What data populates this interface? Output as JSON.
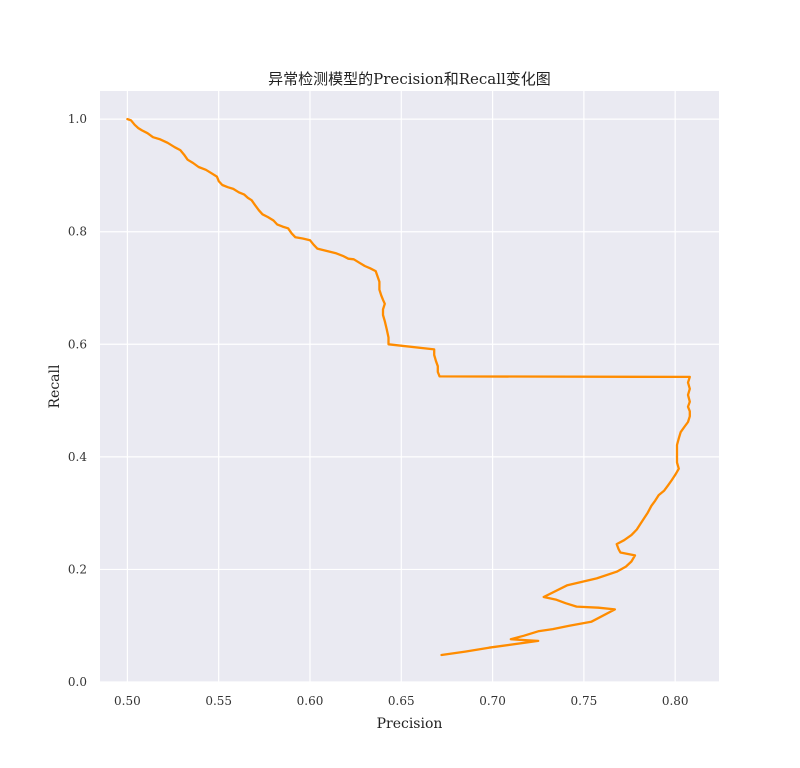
{
  "chart_data": {
    "type": "line",
    "title": "异常检测模型的Precision和Recall变化图",
    "xlabel": "Precision",
    "ylabel": "Recall",
    "xlim": [
      0.485,
      0.824
    ],
    "ylim": [
      0.0,
      1.05
    ],
    "xticks": [
      0.5,
      0.55,
      0.6,
      0.65,
      0.7,
      0.75,
      0.8
    ],
    "xtick_labels": [
      "0.50",
      "0.55",
      "0.60",
      "0.65",
      "0.70",
      "0.75",
      "0.80"
    ],
    "yticks": [
      0.0,
      0.2,
      0.4,
      0.6,
      0.8,
      1.0
    ],
    "ytick_labels": [
      "0.0",
      "0.2",
      "0.4",
      "0.6",
      "0.8",
      "1.0"
    ],
    "grid": true,
    "series": [
      {
        "color": "#ff8c00",
        "points": [
          [
            0.5,
            1.0
          ],
          [
            0.502,
            0.998
          ],
          [
            0.504,
            0.99
          ],
          [
            0.506,
            0.984
          ],
          [
            0.508,
            0.98
          ],
          [
            0.511,
            0.975
          ],
          [
            0.514,
            0.968
          ],
          [
            0.518,
            0.964
          ],
          [
            0.522,
            0.958
          ],
          [
            0.526,
            0.95
          ],
          [
            0.529,
            0.945
          ],
          [
            0.531,
            0.937
          ],
          [
            0.533,
            0.928
          ],
          [
            0.536,
            0.922
          ],
          [
            0.539,
            0.915
          ],
          [
            0.543,
            0.91
          ],
          [
            0.546,
            0.904
          ],
          [
            0.549,
            0.898
          ],
          [
            0.55,
            0.89
          ],
          [
            0.552,
            0.883
          ],
          [
            0.555,
            0.879
          ],
          [
            0.558,
            0.876
          ],
          [
            0.561,
            0.87
          ],
          [
            0.564,
            0.866
          ],
          [
            0.566,
            0.86
          ],
          [
            0.568,
            0.856
          ],
          [
            0.57,
            0.847
          ],
          [
            0.572,
            0.838
          ],
          [
            0.574,
            0.831
          ],
          [
            0.577,
            0.826
          ],
          [
            0.58,
            0.82
          ],
          [
            0.582,
            0.813
          ],
          [
            0.585,
            0.809
          ],
          [
            0.588,
            0.806
          ],
          [
            0.59,
            0.797
          ],
          [
            0.592,
            0.79
          ],
          [
            0.596,
            0.788
          ],
          [
            0.6,
            0.785
          ],
          [
            0.602,
            0.777
          ],
          [
            0.604,
            0.77
          ],
          [
            0.609,
            0.766
          ],
          [
            0.614,
            0.762
          ],
          [
            0.618,
            0.757
          ],
          [
            0.621,
            0.752
          ],
          [
            0.624,
            0.751
          ],
          [
            0.627,
            0.745
          ],
          [
            0.63,
            0.739
          ],
          [
            0.633,
            0.735
          ],
          [
            0.636,
            0.73
          ],
          [
            0.637,
            0.721
          ],
          [
            0.638,
            0.711
          ],
          [
            0.638,
            0.697
          ],
          [
            0.639,
            0.687
          ],
          [
            0.64,
            0.679
          ],
          [
            0.641,
            0.672
          ],
          [
            0.64,
            0.662
          ],
          [
            0.64,
            0.652
          ],
          [
            0.641,
            0.641
          ],
          [
            0.642,
            0.627
          ],
          [
            0.643,
            0.612
          ],
          [
            0.643,
            0.6
          ],
          [
            0.668,
            0.591
          ],
          [
            0.668,
            0.581
          ],
          [
            0.669,
            0.57
          ],
          [
            0.67,
            0.561
          ],
          [
            0.67,
            0.551
          ],
          [
            0.671,
            0.543
          ],
          [
            0.808,
            0.542
          ],
          [
            0.807,
            0.532
          ],
          [
            0.808,
            0.521
          ],
          [
            0.807,
            0.51
          ],
          [
            0.808,
            0.498
          ],
          [
            0.807,
            0.489
          ],
          [
            0.808,
            0.481
          ],
          [
            0.808,
            0.472
          ],
          [
            0.807,
            0.462
          ],
          [
            0.805,
            0.453
          ],
          [
            0.803,
            0.444
          ],
          [
            0.802,
            0.433
          ],
          [
            0.801,
            0.421
          ],
          [
            0.801,
            0.41
          ],
          [
            0.801,
            0.4
          ],
          [
            0.801,
            0.39
          ],
          [
            0.802,
            0.379
          ],
          [
            0.8,
            0.368
          ],
          [
            0.798,
            0.358
          ],
          [
            0.796,
            0.349
          ],
          [
            0.794,
            0.34
          ],
          [
            0.791,
            0.332
          ],
          [
            0.789,
            0.322
          ],
          [
            0.787,
            0.313
          ],
          [
            0.785,
            0.301
          ],
          [
            0.783,
            0.291
          ],
          [
            0.781,
            0.281
          ],
          [
            0.779,
            0.271
          ],
          [
            0.776,
            0.261
          ],
          [
            0.772,
            0.252
          ],
          [
            0.768,
            0.245
          ],
          [
            0.769,
            0.236
          ],
          [
            0.77,
            0.23
          ],
          [
            0.778,
            0.225
          ],
          [
            0.776,
            0.214
          ],
          [
            0.773,
            0.205
          ],
          [
            0.768,
            0.196
          ],
          [
            0.757,
            0.184
          ],
          [
            0.741,
            0.172
          ],
          [
            0.728,
            0.151
          ],
          [
            0.735,
            0.146
          ],
          [
            0.74,
            0.14
          ],
          [
            0.746,
            0.134
          ],
          [
            0.758,
            0.132
          ],
          [
            0.767,
            0.129
          ],
          [
            0.754,
            0.107
          ],
          [
            0.742,
            0.1
          ],
          [
            0.733,
            0.094
          ],
          [
            0.725,
            0.09
          ],
          [
            0.717,
            0.082
          ],
          [
            0.71,
            0.076
          ],
          [
            0.719,
            0.074
          ],
          [
            0.725,
            0.073
          ],
          [
            0.698,
            0.061
          ],
          [
            0.685,
            0.054
          ],
          [
            0.672,
            0.048
          ]
        ]
      }
    ]
  }
}
